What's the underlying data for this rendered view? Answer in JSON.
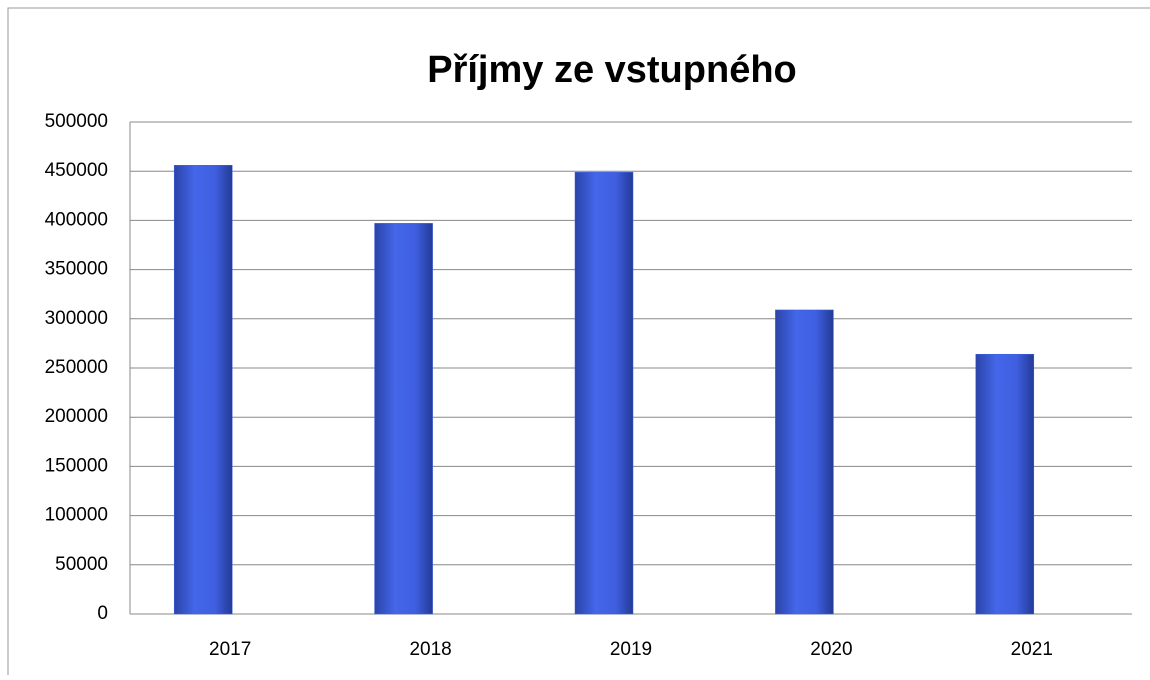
{
  "chart_data": {
    "type": "bar",
    "title": "Příjmy ze vstupného",
    "categories": [
      "2017",
      "2018",
      "2019",
      "2020",
      "2021"
    ],
    "values": [
      456000,
      397000,
      449000,
      309000,
      264000
    ],
    "color": "#3d5fe0",
    "ylim": [
      0,
      500000
    ],
    "yticks": [
      0,
      50000,
      100000,
      150000,
      200000,
      250000,
      300000,
      350000,
      400000,
      450000,
      500000
    ],
    "grid": true
  }
}
